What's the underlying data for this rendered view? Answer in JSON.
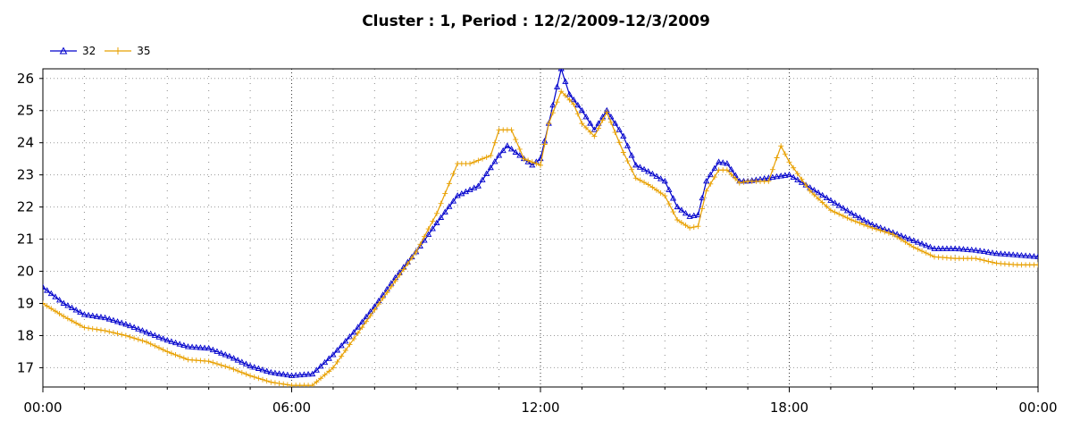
{
  "chart_data": {
    "type": "line",
    "title": "Cluster : 1, Period : 12/2/2009-12/3/2009",
    "xlabel": "",
    "ylabel": "",
    "x_ticks": [
      "00:00",
      "06:00",
      "12:00",
      "18:00",
      "00:00"
    ],
    "y_ticks": [
      17,
      18,
      19,
      20,
      21,
      22,
      23,
      24,
      25,
      26
    ],
    "xlim_hours": [
      0,
      24
    ],
    "ylim": [
      16.4,
      26.3
    ],
    "grid": true,
    "legend_position": "top-left",
    "series": [
      {
        "name": "32",
        "color": "#0000cc",
        "marker": "triangle",
        "x": [
          0,
          0.5,
          1,
          1.5,
          2,
          2.5,
          3,
          3.5,
          4,
          4.5,
          5,
          5.5,
          6,
          6.5,
          7,
          7.5,
          8,
          8.5,
          9,
          9.5,
          10,
          10.5,
          11,
          11.2,
          11.5,
          11.8,
          12,
          12.2,
          12.5,
          12.7,
          13,
          13.3,
          13.6,
          14,
          14.3,
          14.6,
          15,
          15.3,
          15.6,
          15.8,
          16,
          16.3,
          16.5,
          16.8,
          17,
          17.5,
          18,
          18.5,
          19,
          19.5,
          20,
          20.5,
          21,
          21.5,
          22,
          22.5,
          23,
          23.5,
          24
        ],
        "y": [
          19.5,
          19.0,
          18.65,
          18.55,
          18.35,
          18.1,
          17.85,
          17.65,
          17.6,
          17.35,
          17.05,
          16.85,
          16.75,
          16.8,
          17.4,
          18.1,
          18.9,
          19.8,
          20.6,
          21.5,
          22.35,
          22.65,
          23.6,
          23.9,
          23.6,
          23.3,
          23.5,
          24.6,
          26.3,
          25.5,
          25.0,
          24.4,
          25.0,
          24.2,
          23.3,
          23.1,
          22.8,
          22.0,
          21.7,
          21.75,
          22.8,
          23.4,
          23.35,
          22.8,
          22.8,
          22.9,
          23.0,
          22.6,
          22.2,
          21.8,
          21.45,
          21.2,
          20.95,
          20.7,
          20.7,
          20.65,
          20.55,
          20.5,
          20.45
        ]
      },
      {
        "name": "35",
        "color": "#e8a000",
        "marker": "cross",
        "x": [
          0,
          0.5,
          1,
          1.5,
          2,
          2.5,
          3,
          3.5,
          4,
          4.5,
          5,
          5.5,
          6,
          6.5,
          7,
          7.5,
          8,
          8.5,
          9,
          9.5,
          10,
          10.3,
          10.6,
          10.8,
          11,
          11.3,
          11.6,
          12,
          12.2,
          12.5,
          12.8,
          13,
          13.3,
          13.6,
          14,
          14.3,
          14.6,
          15,
          15.3,
          15.6,
          15.8,
          16,
          16.3,
          16.5,
          16.8,
          17,
          17.5,
          17.8,
          18,
          18.5,
          19,
          19.5,
          20,
          20.5,
          21,
          21.5,
          22,
          22.5,
          23,
          23.5,
          24
        ],
        "y": [
          19.0,
          18.6,
          18.25,
          18.15,
          18.0,
          17.8,
          17.5,
          17.25,
          17.2,
          17.0,
          16.75,
          16.55,
          16.45,
          16.45,
          17.0,
          17.9,
          18.8,
          19.7,
          20.6,
          21.8,
          23.35,
          23.35,
          23.5,
          23.6,
          24.4,
          24.4,
          23.5,
          23.3,
          24.6,
          25.6,
          25.2,
          24.6,
          24.2,
          24.95,
          23.7,
          22.9,
          22.7,
          22.35,
          21.6,
          21.35,
          21.4,
          22.5,
          23.15,
          23.15,
          22.75,
          22.8,
          22.8,
          23.9,
          23.4,
          22.5,
          21.9,
          21.6,
          21.35,
          21.15,
          20.75,
          20.45,
          20.4,
          20.4,
          20.25,
          20.2,
          20.2
        ]
      }
    ]
  }
}
